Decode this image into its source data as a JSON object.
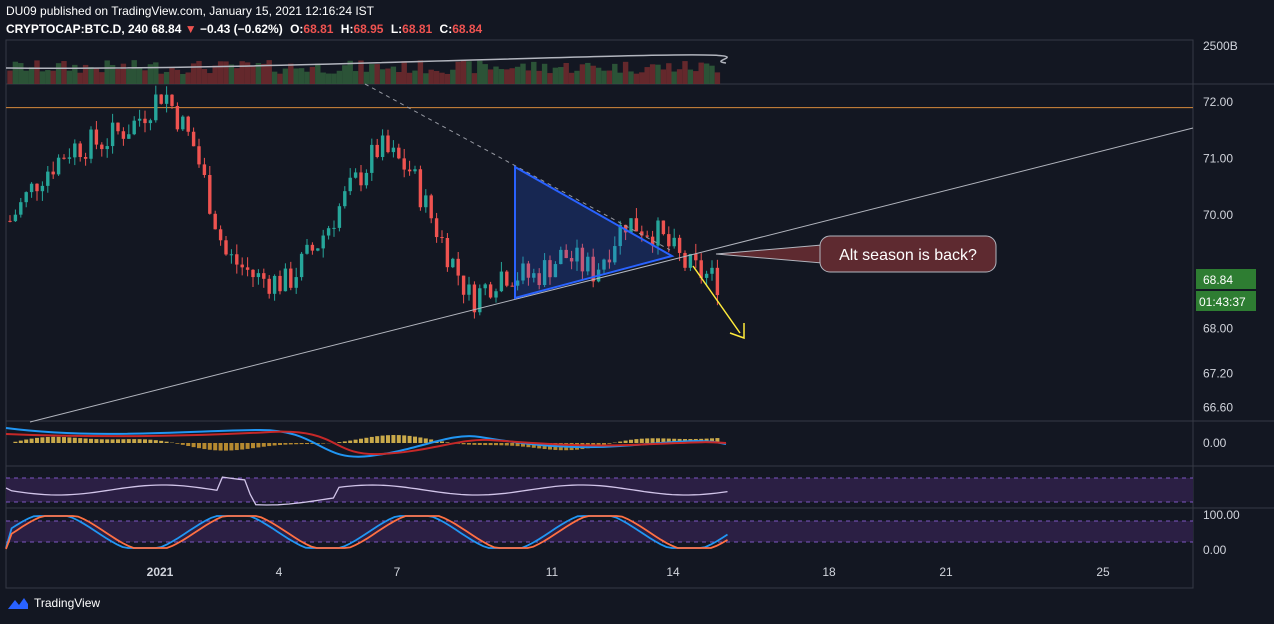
{
  "header": {
    "published": "DU09 published on TradingView.com, January 15, 2021 12:16:24 IST",
    "symbol": "CRYPTOCAP:BTC.D, 240",
    "last": "68.84",
    "change": "−0.43 (−0.62%)",
    "o_label": "O:",
    "o": "68.81",
    "h_label": "H:",
    "h": "68.95",
    "l_label": "L:",
    "l": "68.81",
    "c_label": "C:",
    "c": "68.84"
  },
  "annotation": {
    "text": "Alt season is back?"
  },
  "price_badge": "68.84",
  "countdown_badge": "01:43:37",
  "footer": {
    "brand": "TradingView"
  },
  "colors": {
    "up": "#26a69a",
    "down": "#ef5350",
    "bg": "#131722",
    "wedge": "#2962ff",
    "arrow": "#ffeb3b",
    "level": "#d68a3c"
  },
  "chart_data": {
    "type": "candlestick",
    "price_axis": {
      "ticks": [
        "72.00",
        "71.00",
        "70.00",
        "68.00",
        "67.20",
        "66.60"
      ],
      "values": [
        72.0,
        71.0,
        70.0,
        68.0,
        67.2,
        66.6
      ],
      "volume_tick": "2500B"
    },
    "time_axis": {
      "ticks": [
        "2021",
        "4",
        "7",
        "11",
        "14",
        "18",
        "21",
        "25"
      ]
    },
    "horizontal_level": 71.9,
    "close_path": [
      69.9,
      70.7,
      71.2,
      71.3,
      71.6,
      72.2,
      71.2,
      69.3,
      68.9,
      68.8,
      69.5,
      70.4,
      71.2,
      70.8,
      69.6,
      68.5,
      69.0,
      68.9,
      69.3,
      69.0,
      69.9,
      69.7,
      69.1,
      68.84
    ],
    "indicators": {
      "macd_tick": "0.00",
      "stoch_ticks": [
        "100.00",
        "0.00"
      ]
    }
  }
}
